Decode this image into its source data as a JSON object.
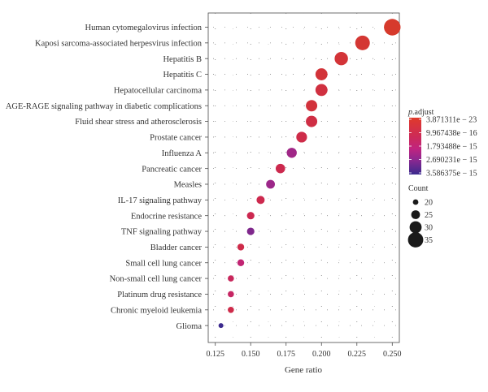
{
  "chart_data": {
    "type": "scatter",
    "xlabel": "Gene ratio",
    "ylabel": "",
    "xlim": [
      0.12,
      0.255
    ],
    "x_ticks": [
      "0.125",
      "0.150",
      "0.175",
      "0.200",
      "0.225",
      "0.250"
    ],
    "categories": [
      "Human cytomegalovirus infection",
      "Kaposi sarcoma-associated herpesvirus infection",
      "Hepatitis B",
      "Hepatitis C",
      "Hepatocellular carcinoma",
      "AGE-RAGE signaling pathway in diabetic complications",
      "Fluid shear stress and atherosclerosis",
      "Prostate cancer",
      "Influenza A",
      "Pancreatic cancer",
      "Measles",
      "IL-17 signaling pathway",
      "Endocrine resistance",
      "TNF signaling pathway",
      "Bladder cancer",
      "Small cell lung cancer",
      "Non-small cell lung cancer",
      "Platinum drug resistance",
      "Chronic myeloid leukemia",
      "Glioma"
    ],
    "points": [
      {
        "category": "Human cytomegalovirus infection",
        "gene_ratio": 0.25,
        "count": 36,
        "p_adjust": 4e-23
      },
      {
        "category": "Kaposi sarcoma-associated herpesvirus infection",
        "gene_ratio": 0.229,
        "count": 33,
        "p_adjust": 6e-22
      },
      {
        "category": "Hepatitis B",
        "gene_ratio": 0.214,
        "count": 31,
        "p_adjust": 5e-21
      },
      {
        "category": "Hepatitis C",
        "gene_ratio": 0.2,
        "count": 29,
        "p_adjust": 1e-20
      },
      {
        "category": "Hepatocellular carcinoma",
        "gene_ratio": 0.2,
        "count": 29,
        "p_adjust": 1.5e-19
      },
      {
        "category": "AGE-RAGE signaling pathway in diabetic complications",
        "gene_ratio": 0.193,
        "count": 28,
        "p_adjust": 3e-20
      },
      {
        "category": "Fluid shear stress and atherosclerosis",
        "gene_ratio": 0.193,
        "count": 28,
        "p_adjust": 8e-19
      },
      {
        "category": "Prostate cancer",
        "gene_ratio": 0.186,
        "count": 27,
        "p_adjust": 5e-18
      },
      {
        "category": "Influenza A",
        "gene_ratio": 0.179,
        "count": 26,
        "p_adjust": 1.7e-15
      },
      {
        "category": "Pancreatic cancer",
        "gene_ratio": 0.171,
        "count": 25,
        "p_adjust": 5e-17
      },
      {
        "category": "Measles",
        "gene_ratio": 0.164,
        "count": 24,
        "p_adjust": 1.8e-15
      },
      {
        "category": "IL-17 signaling pathway",
        "gene_ratio": 0.157,
        "count": 23,
        "p_adjust": 4e-17
      },
      {
        "category": "Endocrine resistance",
        "gene_ratio": 0.15,
        "count": 22,
        "p_adjust": 9e-17
      },
      {
        "category": "TNF signaling pathway",
        "gene_ratio": 0.15,
        "count": 22,
        "p_adjust": 2.3e-15
      },
      {
        "category": "Bladder cancer",
        "gene_ratio": 0.143,
        "count": 21,
        "p_adjust": 1e-17
      },
      {
        "category": "Small cell lung cancer",
        "gene_ratio": 0.143,
        "count": 21,
        "p_adjust": 7.5e-16
      },
      {
        "category": "Non-small cell lung cancer",
        "gene_ratio": 0.136,
        "count": 20,
        "p_adjust": 2e-16
      },
      {
        "category": "Platinum drug resistance",
        "gene_ratio": 0.136,
        "count": 20,
        "p_adjust": 3e-16
      },
      {
        "category": "Chronic myeloid leukemia",
        "gene_ratio": 0.136,
        "count": 20,
        "p_adjust": 1e-17
      },
      {
        "category": "Glioma",
        "gene_ratio": 0.129,
        "count": 18,
        "p_adjust": 3.5e-15
      }
    ],
    "color_legend": {
      "title_italic": "p",
      "title_rest": ".adjust",
      "labels": [
        "3.871311e − 23",
        "9.967438e − 16",
        "1.793488e − 15",
        "2.690231e − 15",
        "3.586375e − 15"
      ],
      "colors": [
        "#d63a2c",
        "#c8246f",
        "#a2228c",
        "#6a2894",
        "#3a2a8e"
      ]
    },
    "size_legend": {
      "title": "Count",
      "labels": [
        "20",
        "25",
        "30",
        "35"
      ],
      "values": [
        20,
        25,
        30,
        35
      ]
    },
    "grid": true,
    "legend_position": "right"
  }
}
